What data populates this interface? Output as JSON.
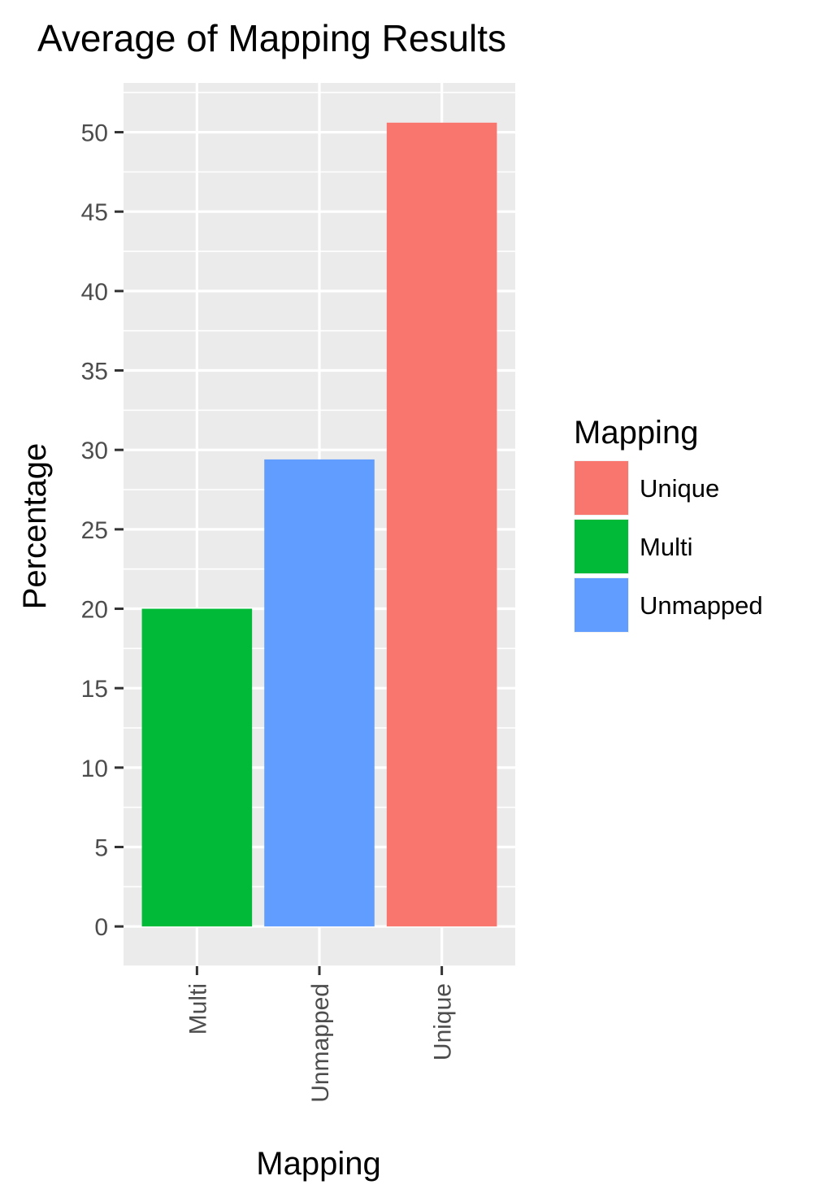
{
  "chart_data": {
    "type": "bar",
    "title": "Average of Mapping Results",
    "xlabel": "Mapping",
    "ylabel": "Percentage",
    "categories": [
      "Multi",
      "Unmapped",
      "Unique"
    ],
    "values": [
      20.0,
      29.4,
      50.6
    ],
    "bar_colors": [
      "#00ba38",
      "#619cff",
      "#f8766d"
    ],
    "y_ticks": [
      "0",
      "5",
      "10",
      "15",
      "20",
      "25",
      "30",
      "35",
      "40",
      "45",
      "50"
    ],
    "ylim": [
      -2.5,
      53.1
    ],
    "grid": true,
    "panel_background": "#ebebeb",
    "grid_color": "#ffffff",
    "legend": {
      "title": "Mapping",
      "placement": "right",
      "items": [
        {
          "label": "Unique",
          "color": "#f8766d"
        },
        {
          "label": "Multi",
          "color": "#00ba38"
        },
        {
          "label": "Unmapped",
          "color": "#619cff"
        }
      ]
    }
  }
}
